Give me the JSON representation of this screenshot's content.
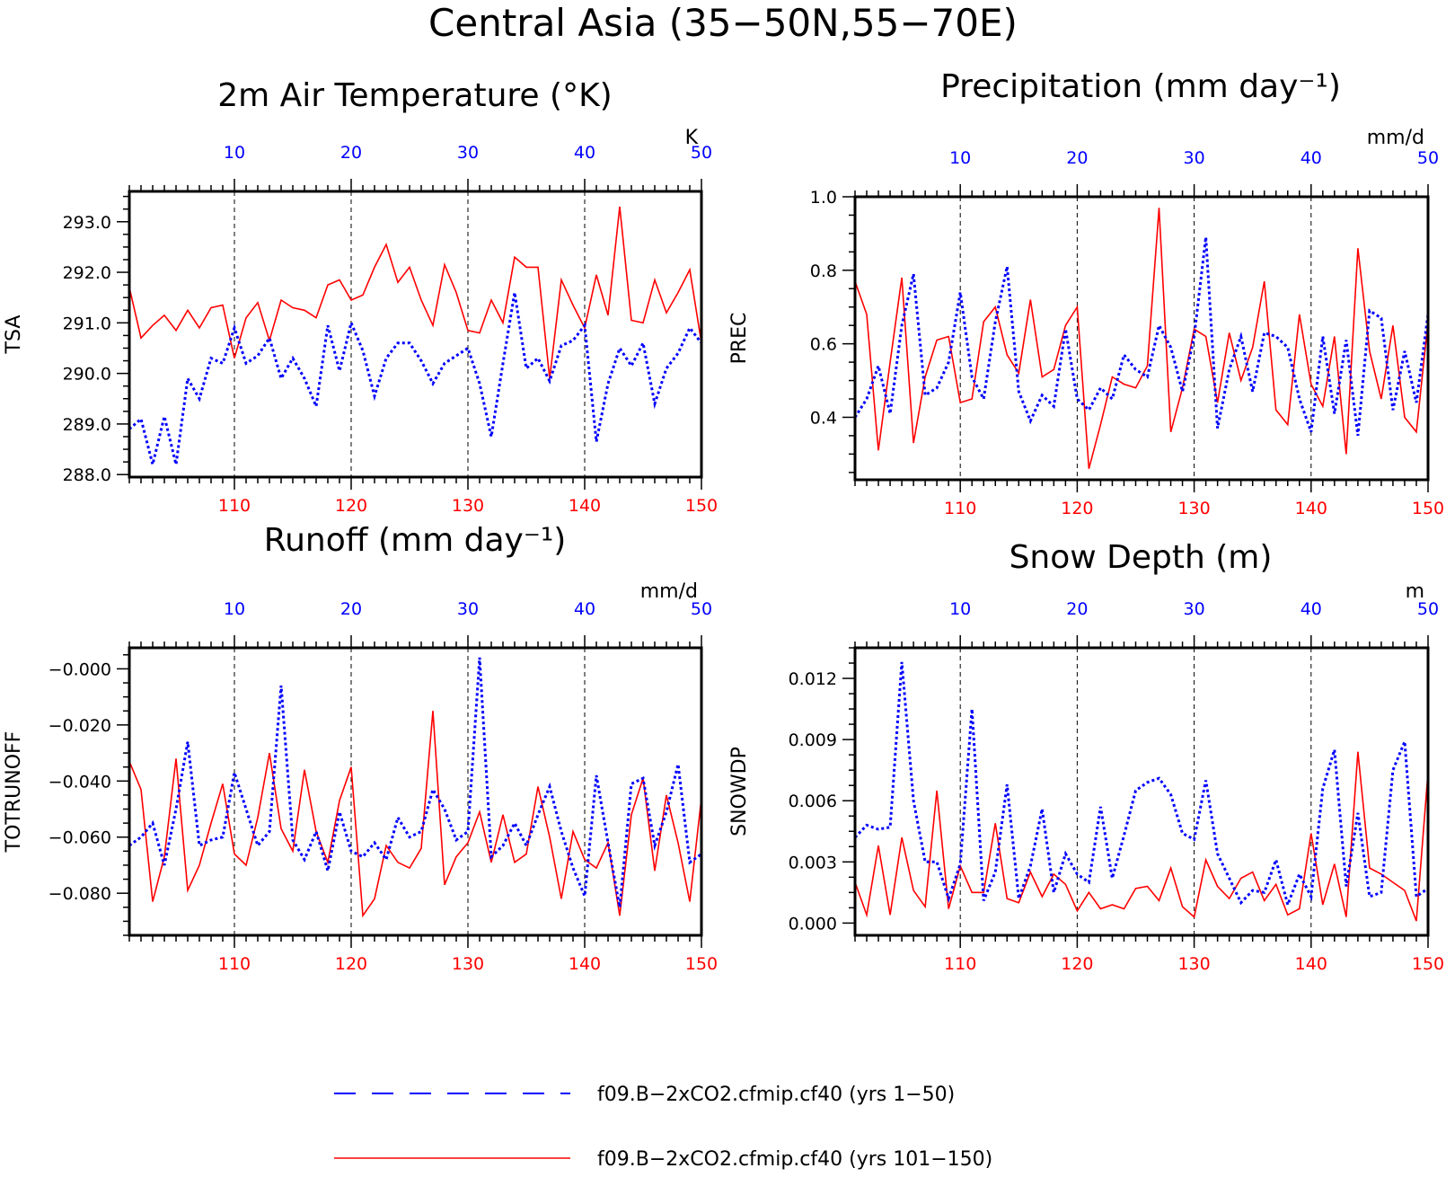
{
  "figure_title": "Central Asia (35−50N,55−70E)",
  "colors": {
    "series1": "#0000ff",
    "series2": "#ff0000",
    "axis": "#000000"
  },
  "legend": [
    {
      "label": "f09.B−2xCO2.cfmip.cf40 (yrs 1−50)",
      "style": "dashed",
      "color": "#0000ff"
    },
    {
      "label": "f09.B−2xCO2.cfmip.cf40 (yrs 101−150)",
      "style": "solid",
      "color": "#ff0000"
    }
  ],
  "chart_data": [
    {
      "type": "line",
      "title": "2m Air Temperature (°K)",
      "ylabel": "TSA",
      "units": "K",
      "xlim_top": [
        1,
        50
      ],
      "xlim_bottom": [
        101,
        150
      ],
      "top_ticks": [
        10,
        20,
        30,
        40,
        50
      ],
      "bottom_ticks": [
        110,
        120,
        130,
        140,
        150
      ],
      "ylim": [
        287.95,
        293.6
      ],
      "yticks": [
        288.0,
        289.0,
        290.0,
        291.0,
        292.0,
        293.0
      ],
      "ytick_labels": [
        "288.0",
        "289.0",
        "290.0",
        "291.0",
        "292.0",
        "293.0"
      ],
      "series": [
        {
          "values": [
            288.9,
            289.1,
            288.2,
            289.15,
            288.2,
            289.9,
            289.5,
            290.3,
            290.2,
            290.9,
            290.2,
            290.35,
            290.7,
            289.9,
            290.3,
            289.9,
            289.35,
            290.95,
            290.05,
            291.0,
            290.45,
            289.55,
            290.3,
            290.6,
            290.6,
            290.25,
            289.8,
            290.2,
            290.35,
            290.5,
            289.8,
            288.75,
            290.2,
            291.6,
            290.1,
            290.3,
            289.85,
            290.55,
            290.65,
            290.95,
            288.65,
            289.8,
            290.5,
            290.15,
            290.6,
            289.4,
            290.1,
            290.4,
            290.9,
            290.6
          ]
        },
        {
          "values": [
            291.7,
            290.7,
            290.95,
            291.15,
            290.85,
            291.25,
            290.9,
            291.3,
            291.35,
            290.3,
            291.1,
            291.4,
            290.65,
            291.45,
            291.3,
            291.25,
            291.1,
            291.75,
            291.85,
            291.45,
            291.55,
            292.1,
            292.55,
            291.8,
            292.1,
            291.45,
            290.95,
            292.15,
            291.6,
            290.85,
            290.8,
            291.45,
            291.0,
            292.3,
            292.1,
            292.1,
            289.9,
            291.85,
            291.35,
            290.9,
            291.95,
            291.15,
            293.3,
            291.05,
            291.0,
            291.85,
            291.2,
            291.6,
            292.05,
            290.6
          ]
        }
      ]
    },
    {
      "type": "line",
      "title": "Precipitation (mm day⁻¹)",
      "ylabel": "PREC",
      "units": "mm/d",
      "xlim_top": [
        1,
        50
      ],
      "xlim_bottom": [
        101,
        150
      ],
      "top_ticks": [
        10,
        20,
        30,
        40,
        50
      ],
      "bottom_ticks": [
        110,
        120,
        130,
        140,
        150
      ],
      "ylim": [
        0.23,
        1.0
      ],
      "yticks": [
        0.4,
        0.6,
        0.8,
        1.0
      ],
      "ytick_labels": [
        "0.4",
        "0.6",
        "0.8",
        "1.0"
      ],
      "series": [
        {
          "values": [
            0.4,
            0.45,
            0.54,
            0.41,
            0.65,
            0.79,
            0.46,
            0.48,
            0.55,
            0.74,
            0.51,
            0.45,
            0.66,
            0.81,
            0.47,
            0.39,
            0.46,
            0.43,
            0.64,
            0.45,
            0.42,
            0.48,
            0.45,
            0.57,
            0.53,
            0.51,
            0.65,
            0.59,
            0.47,
            0.62,
            0.89,
            0.37,
            0.53,
            0.62,
            0.47,
            0.63,
            0.62,
            0.59,
            0.45,
            0.36,
            0.62,
            0.41,
            0.61,
            0.35,
            0.69,
            0.67,
            0.42,
            0.58,
            0.44,
            0.68
          ]
        },
        {
          "values": [
            0.77,
            0.68,
            0.31,
            0.55,
            0.78,
            0.33,
            0.51,
            0.61,
            0.62,
            0.44,
            0.45,
            0.66,
            0.7,
            0.57,
            0.52,
            0.72,
            0.51,
            0.53,
            0.65,
            0.7,
            0.26,
            0.38,
            0.51,
            0.49,
            0.48,
            0.54,
            0.97,
            0.36,
            0.48,
            0.64,
            0.62,
            0.44,
            0.63,
            0.5,
            0.59,
            0.77,
            0.42,
            0.38,
            0.68,
            0.49,
            0.43,
            0.62,
            0.3,
            0.86,
            0.58,
            0.45,
            0.65,
            0.4,
            0.36,
            0.66
          ]
        }
      ]
    },
    {
      "type": "line",
      "title": "Runoff (mm day⁻¹)",
      "ylabel": "TOTRUNOFF",
      "units": "mm/d",
      "xlim_top": [
        1,
        50
      ],
      "xlim_bottom": [
        101,
        150
      ],
      "top_ticks": [
        10,
        20,
        30,
        40,
        50
      ],
      "bottom_ticks": [
        110,
        120,
        130,
        140,
        150
      ],
      "ylim": [
        -0.095,
        0.0075
      ],
      "yticks": [
        -0.08,
        -0.06,
        -0.04,
        -0.02,
        0.0
      ],
      "ytick_labels": [
        "−0.080",
        "−0.060",
        "−0.040",
        "−0.020",
        "−0.000"
      ],
      "series": [
        {
          "values": [
            -0.063,
            -0.06,
            -0.055,
            -0.07,
            -0.05,
            -0.026,
            -0.063,
            -0.061,
            -0.06,
            -0.037,
            -0.05,
            -0.063,
            -0.058,
            -0.006,
            -0.061,
            -0.068,
            -0.058,
            -0.072,
            -0.051,
            -0.065,
            -0.067,
            -0.062,
            -0.068,
            -0.053,
            -0.06,
            -0.058,
            -0.043,
            -0.05,
            -0.061,
            -0.058,
            0.004,
            -0.067,
            -0.063,
            -0.055,
            -0.063,
            -0.052,
            -0.042,
            -0.058,
            -0.071,
            -0.081,
            -0.038,
            -0.062,
            -0.085,
            -0.041,
            -0.039,
            -0.063,
            -0.051,
            -0.034,
            -0.069,
            -0.066
          ]
        },
        {
          "values": [
            -0.033,
            -0.043,
            -0.083,
            -0.067,
            -0.032,
            -0.079,
            -0.07,
            -0.055,
            -0.041,
            -0.066,
            -0.07,
            -0.053,
            -0.03,
            -0.057,
            -0.065,
            -0.036,
            -0.058,
            -0.069,
            -0.047,
            -0.035,
            -0.088,
            -0.082,
            -0.063,
            -0.069,
            -0.071,
            -0.064,
            -0.015,
            -0.077,
            -0.067,
            -0.062,
            -0.051,
            -0.069,
            -0.052,
            -0.069,
            -0.066,
            -0.042,
            -0.06,
            -0.082,
            -0.058,
            -0.068,
            -0.071,
            -0.062,
            -0.088,
            -0.052,
            -0.039,
            -0.072,
            -0.045,
            -0.062,
            -0.083,
            -0.046
          ]
        }
      ]
    },
    {
      "type": "line",
      "title": "Snow Depth (m)",
      "ylabel": "SNOWDP",
      "units": "m",
      "xlim_top": [
        1,
        50
      ],
      "xlim_bottom": [
        101,
        150
      ],
      "top_ticks": [
        10,
        20,
        30,
        40,
        50
      ],
      "bottom_ticks": [
        110,
        120,
        130,
        140,
        150
      ],
      "ylim": [
        -0.0006,
        0.0135
      ],
      "yticks": [
        0.0,
        0.003,
        0.006,
        0.009,
        0.012
      ],
      "ytick_labels": [
        "0.000",
        "0.003",
        "0.006",
        "0.009",
        "0.012"
      ],
      "series": [
        {
          "values": [
            0.0042,
            0.0048,
            0.0046,
            0.0047,
            0.0128,
            0.006,
            0.003,
            0.003,
            0.0012,
            0.0029,
            0.0105,
            0.0011,
            0.0025,
            0.0068,
            0.0012,
            0.0028,
            0.0056,
            0.0015,
            0.0034,
            0.0024,
            0.002,
            0.0057,
            0.0022,
            0.0043,
            0.0065,
            0.0069,
            0.0071,
            0.0063,
            0.0044,
            0.0041,
            0.007,
            0.0034,
            0.0022,
            0.001,
            0.0016,
            0.0015,
            0.0031,
            0.0009,
            0.0024,
            0.0013,
            0.0066,
            0.0085,
            0.0018,
            0.0054,
            0.0013,
            0.0015,
            0.0075,
            0.0089,
            0.0013,
            0.0017
          ]
        },
        {
          "values": [
            0.002,
            0.0004,
            0.0038,
            0.0004,
            0.0042,
            0.0016,
            0.0008,
            0.0065,
            0.0007,
            0.0028,
            0.0015,
            0.0015,
            0.0049,
            0.0012,
            0.001,
            0.0025,
            0.0013,
            0.0024,
            0.0019,
            0.0006,
            0.0015,
            0.0007,
            0.0009,
            0.0007,
            0.0017,
            0.0018,
            0.0011,
            0.0027,
            0.0008,
            0.0003,
            0.0031,
            0.0018,
            0.0012,
            0.0022,
            0.0025,
            0.0011,
            0.0019,
            0.0004,
            0.0007,
            0.0044,
            0.0009,
            0.0029,
            0.0003,
            0.0084,
            0.0027,
            0.0024,
            0.002,
            0.0016,
            0.0001,
            0.0074
          ]
        }
      ]
    }
  ]
}
